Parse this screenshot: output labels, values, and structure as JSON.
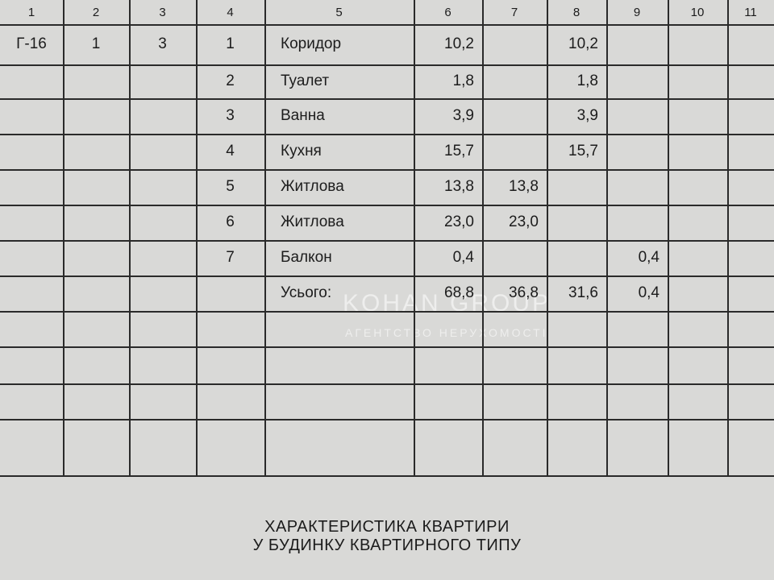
{
  "table": {
    "column_numbers": [
      "1",
      "2",
      "3",
      "4",
      "5",
      "6",
      "7",
      "8",
      "9",
      "10",
      "11"
    ],
    "rows": [
      {
        "1": "Г-16",
        "2": "1",
        "3": "3",
        "4": "1",
        "5": "Коридор",
        "6": "10,2",
        "8": "10,2"
      },
      {
        "4": "2",
        "5": "Туалет",
        "6": "1,8",
        "8": "1,8"
      },
      {
        "4": "3",
        "5": "Ванна",
        "6": "3,9",
        "8": "3,9"
      },
      {
        "4": "4",
        "5": "Кухня",
        "6": "15,7",
        "8": "15,7"
      },
      {
        "4": "5",
        "5": "Житлова",
        "6": "13,8",
        "7": "13,8"
      },
      {
        "4": "6",
        "5": "Житлова",
        "6": "23,0",
        "7": "23,0"
      },
      {
        "4": "7",
        "5": "Балкон",
        "6": "0,4",
        "9": "0,4"
      },
      {
        "5": "Усього:",
        "6": "68,8",
        "7": "36,8",
        "8": "31,6",
        "9": "0,4"
      }
    ]
  },
  "watermark": {
    "brand": "KOHAN GROUP",
    "tagline": "АГЕНТСТВО НЕРУХОМОСТІ"
  },
  "caption": {
    "line1": "ХАРАКТЕРИСТИКА КВАРТИРИ",
    "line2": "У БУДИНКУ КВАРТИРНОГО ТИПУ"
  }
}
